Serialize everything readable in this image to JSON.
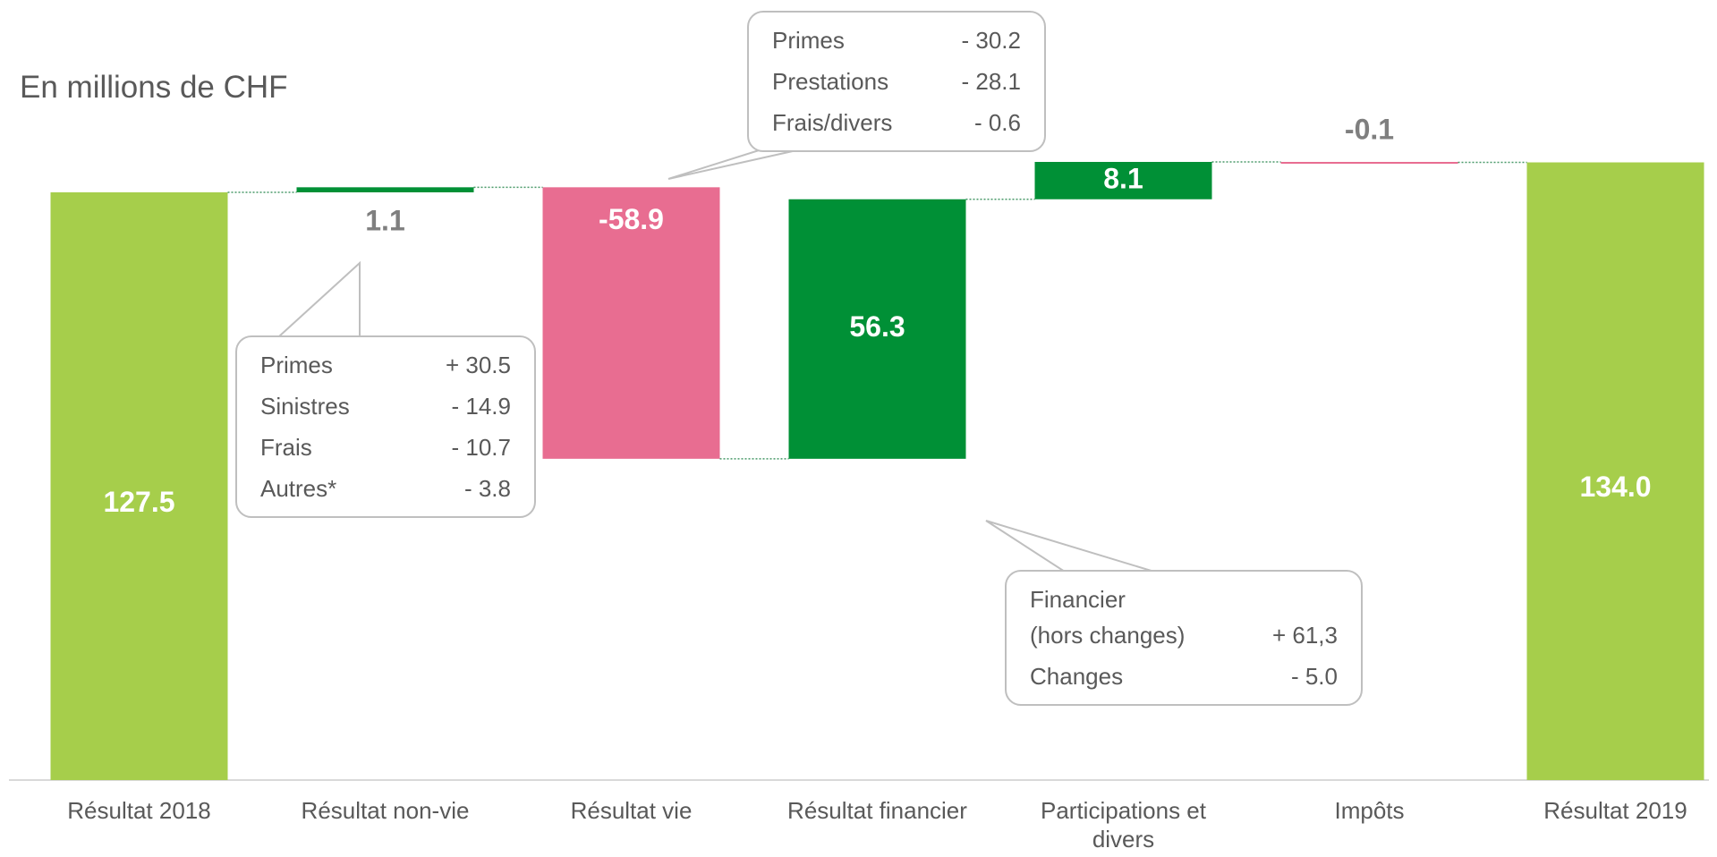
{
  "chart_data": {
    "type": "waterfall",
    "subtitle": "En millions de CHF",
    "categories": [
      "Résultat 2018",
      "Résultat non-vie",
      "Résultat vie",
      "Résultat financier",
      "Participations et divers",
      "Impôts",
      "Résultat 2019"
    ],
    "values": [
      127.5,
      1.1,
      -58.9,
      56.3,
      8.1,
      -0.1,
      134.0
    ],
    "value_labels": [
      "127.5",
      "1.1",
      "-58.9",
      "56.3",
      "8.1",
      "-0.1",
      "134.0"
    ],
    "totals": [
      true,
      false,
      false,
      false,
      false,
      false,
      true
    ],
    "colors": {
      "total": "#a6ce4b",
      "increase": "#009036",
      "decrease": "#e86d91"
    },
    "annotations": [
      {
        "category": 1,
        "rows": [
          [
            "Primes",
            "+ 30.5"
          ],
          [
            "Sinistres",
            "- 14.9"
          ],
          [
            "Frais",
            "- 10.7"
          ],
          [
            "Autres*",
            "- 3.8"
          ]
        ]
      },
      {
        "category": 2,
        "rows": [
          [
            "Primes",
            "- 30.2"
          ],
          [
            "Prestations",
            "- 28.1"
          ],
          [
            "Frais/divers",
            "- 0.6"
          ]
        ]
      },
      {
        "category": 3,
        "rows": [
          [
            "Financier\n(hors changes)",
            "+ 61,3"
          ],
          [
            "Changes",
            "- 5.0"
          ]
        ]
      }
    ]
  }
}
